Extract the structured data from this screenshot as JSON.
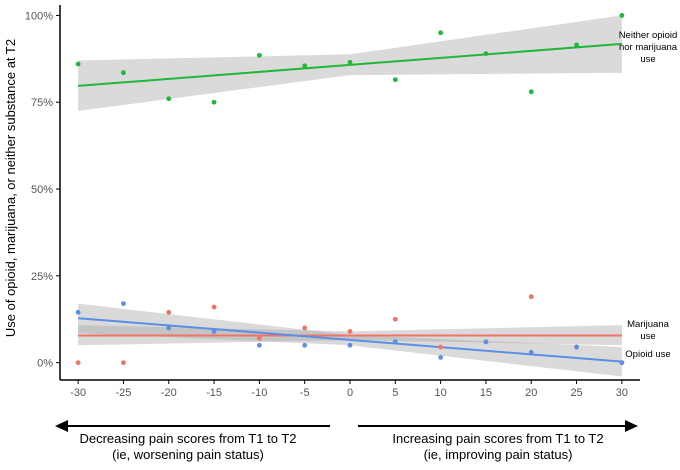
{
  "chart_data": {
    "type": "scatter",
    "ylabel": "Use of opioid, marijuana, or neither substance at T2",
    "xlim": [
      -32,
      32
    ],
    "ylim": [
      -5,
      103
    ],
    "x_ticks": [
      -30,
      -25,
      -20,
      -15,
      -10,
      -5,
      0,
      5,
      10,
      15,
      20,
      25,
      30
    ],
    "x_tick_labels": [
      "-30",
      "-25",
      "-20",
      "-15",
      "-10",
      "-5",
      "0",
      "5",
      "10",
      "15",
      "20",
      "25",
      "30"
    ],
    "y_ticks": [
      0,
      25,
      50,
      75,
      100
    ],
    "y_tick_labels": [
      "0%",
      "25%",
      "50%",
      "75%",
      "100%"
    ],
    "grid": false,
    "series": [
      {
        "name": "Neither opioid nor marijuana use",
        "label_lines": [
          "Neither opioid",
          "nor marijuana",
          "use"
        ],
        "color": "#1fb83a",
        "points": [
          [
            -30,
            86
          ],
          [
            -25,
            83.5
          ],
          [
            -20,
            76
          ],
          [
            -15,
            75
          ],
          [
            -10,
            88.5
          ],
          [
            -5,
            85.5
          ],
          [
            0,
            86.5
          ],
          [
            5,
            81.5
          ],
          [
            10,
            95
          ],
          [
            15,
            89
          ],
          [
            20,
            78
          ],
          [
            25,
            91.5
          ],
          [
            30,
            100
          ]
        ],
        "fit": {
          "start": 79.7,
          "end": 91.8,
          "band_lower": [
            72.5,
            82.8,
            83.5
          ],
          "band_upper": [
            87.0,
            88.8,
            100.0
          ]
        }
      },
      {
        "name": "Marijuana use",
        "label_lines": [
          "Marijuana",
          "use"
        ],
        "color": "#f0736a",
        "points": [
          [
            -30,
            0
          ],
          [
            -25,
            0
          ],
          [
            -20,
            14.5
          ],
          [
            -15,
            16
          ],
          [
            -10,
            7
          ],
          [
            -5,
            10
          ],
          [
            0,
            9
          ],
          [
            5,
            12.5
          ],
          [
            10,
            4.5
          ],
          [
            15,
            6
          ],
          [
            20,
            19
          ],
          [
            25,
            4.5
          ],
          [
            30,
            0
          ]
        ],
        "fit": {
          "start": 7.8,
          "end": 7.8,
          "band_lower": [
            5.0,
            6.5,
            5.0
          ],
          "band_upper": [
            10.8,
            9.0,
            10.8
          ]
        }
      },
      {
        "name": "Opioid use",
        "label_lines": [
          "Opioid use"
        ],
        "color": "#5b8fe6",
        "points": [
          [
            -30,
            14.5
          ],
          [
            -25,
            17
          ],
          [
            -20,
            10
          ],
          [
            -15,
            9
          ],
          [
            -10,
            5
          ],
          [
            -5,
            5
          ],
          [
            0,
            5
          ],
          [
            5,
            6
          ],
          [
            10,
            1.5
          ],
          [
            15,
            6
          ],
          [
            20,
            3
          ],
          [
            25,
            4.5
          ],
          [
            30,
            0
          ]
        ],
        "fit": {
          "start": 12.8,
          "end": 0.3,
          "band_lower": [
            8.5,
            5.0,
            -4.0
          ],
          "band_upper": [
            17.0,
            8.0,
            4.5
          ]
        }
      }
    ],
    "annotations": {
      "left_arrow": [
        "Decreasing pain scores from T1 to T2",
        "(ie, worsening pain status)"
      ],
      "right_arrow": [
        "Increasing pain scores from T1 to T2",
        "(ie, improving pain status)"
      ]
    }
  }
}
